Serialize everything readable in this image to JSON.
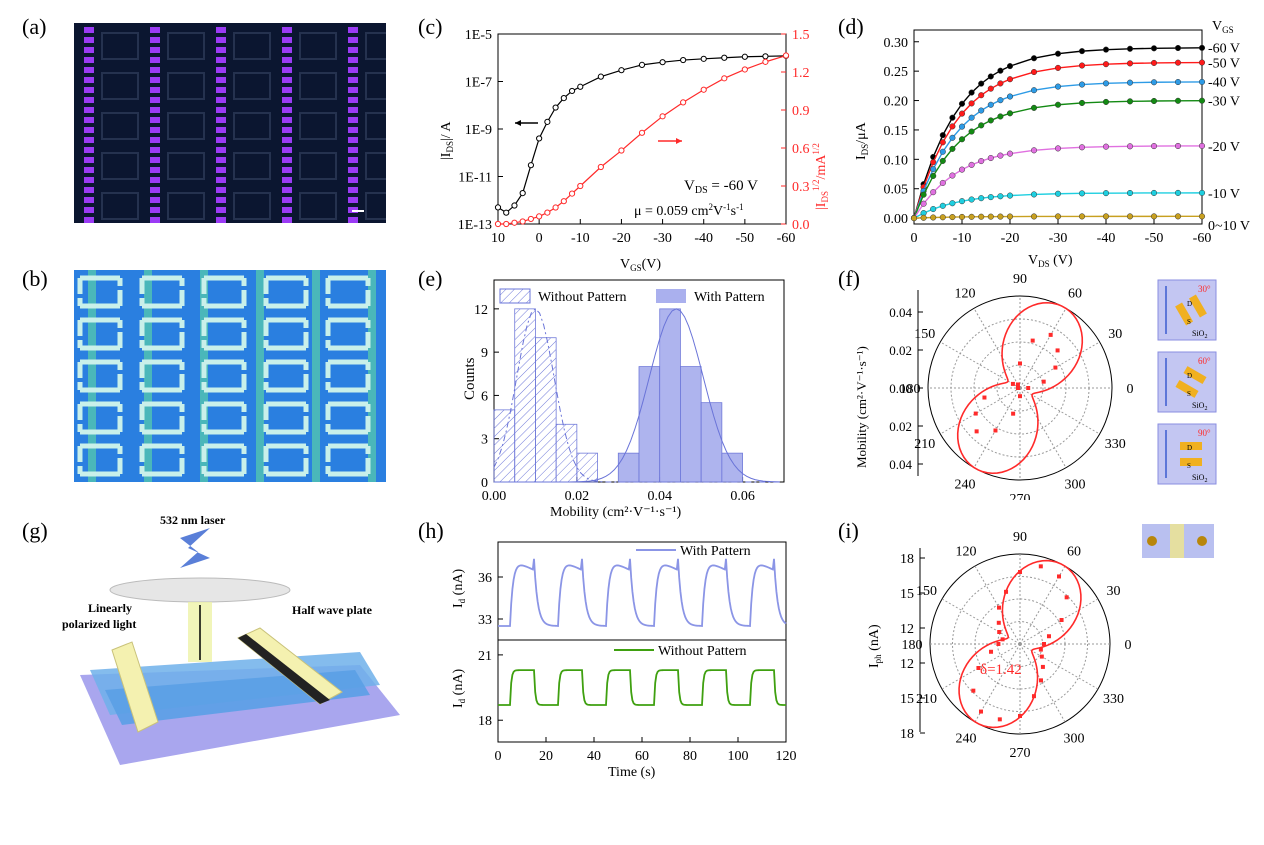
{
  "labels": {
    "a": "(a)",
    "b": "(b)",
    "c": "(c)",
    "d": "(d)",
    "e": "(e)",
    "f": "(f)",
    "g": "(g)",
    "h": "(h)",
    "i": "(i)"
  },
  "colors": {
    "black": "#000000",
    "red": "#ff2a2a",
    "darkblue": "#0b1630",
    "violet": "#9b3bf5",
    "lightblue": "#8b95e6",
    "green": "#3fa010",
    "cyan": "#1ec8e8",
    "gridgray": "#bbbbbb"
  },
  "panel_c": {
    "ylabel_left": "|I",
    "ylabel_left_sub": "DS",
    "ylabel_left_tail": "|/ A",
    "ylabel_right": "|I",
    "ylabel_right_sub": "DS",
    "ylabel_right_sup": "1/2",
    "ylabel_right_tail": "/mA",
    "ylabel_right_sup2": "1/2",
    "xlabel": "V",
    "xlabel_sub": "GS",
    "xlabel_tail": "(V)",
    "left_ticks": [
      "1E-5",
      "1E-7",
      "1E-9",
      "1E-11",
      "1E-13"
    ],
    "right_ticks": [
      "1.5",
      "1.2",
      "0.9",
      "0.6",
      "0.3",
      "0.0"
    ],
    "x_ticks": [
      "10",
      "0",
      "-10",
      "-20",
      "-30",
      "-40",
      "-50",
      "-60"
    ],
    "annot_v": "V",
    "annot_v_sub": "DS",
    "annot_v_tail": " = -60 V",
    "annot_mu": "μ = 0.059 cm",
    "annot_mu_sup": "2",
    "annot_mu_mid": "V",
    "annot_mu_sup2": "-1",
    "annot_mu_mid2": "s",
    "annot_mu_sup3": "-1"
  },
  "panel_d": {
    "ylabel": "I",
    "ylabel_sub": "DS",
    "ylabel_tail": "/μA",
    "xlabel": "V",
    "xlabel_sub": "DS",
    "xlabel_tail": " (V)",
    "y_ticks": [
      "0.30",
      "0.25",
      "0.20",
      "0.15",
      "0.10",
      "0.05",
      "0.00"
    ],
    "x_ticks": [
      "0",
      "-10",
      "-20",
      "-30",
      "-40",
      "-50",
      "-60"
    ],
    "vgs_title": "V",
    "vgs_title_sub": "GS",
    "series_labels": [
      "-60 V",
      "-50 V",
      "-40 V",
      "-30 V",
      "-20 V",
      "-10 V",
      "0~10 V"
    ]
  },
  "panel_e": {
    "ylabel": "Counts",
    "xlabel": "Mobility (cm²·V⁻¹·s⁻¹)",
    "y_ticks": [
      "12",
      "9",
      "6",
      "3",
      "0"
    ],
    "x_ticks": [
      "0.00",
      "0.02",
      "0.04",
      "0.06"
    ],
    "legend_without": "Without Pattern",
    "legend_with": "With Pattern"
  },
  "panel_f": {
    "ylabel": "Mobility (cm²·V⁻¹·s⁻¹)",
    "r_ticks": [
      "0.04",
      "0.02",
      "0.00",
      "0.02",
      "0.04"
    ],
    "angles": [
      "90",
      "60",
      "30",
      "0",
      "330",
      "300",
      "270",
      "240",
      "210",
      "180",
      "150",
      "120"
    ],
    "inset_angles": [
      "30°",
      "60°",
      "90°"
    ],
    "inset_sio2": "SiO",
    "inset_sio2_sub": "2",
    "inset_d": "D",
    "inset_s": "S"
  },
  "panel_g": {
    "laser": "532 nm laser",
    "hwp": "Half wave plate",
    "lpl1": "Linearly",
    "lpl2": "polarized light"
  },
  "panel_h": {
    "ylabel": "I",
    "ylabel_sub": "d",
    "ylabel_tail": " (nA)",
    "xlabel": "Time (s)",
    "top_ticks": [
      "36",
      "33"
    ],
    "bottom_ticks": [
      "21",
      "18"
    ],
    "x_ticks": [
      "0",
      "20",
      "40",
      "60",
      "80",
      "100",
      "120"
    ],
    "legend_with": "With Pattern",
    "legend_without": "Without Pattern"
  },
  "panel_i": {
    "ylabel": "I",
    "ylabel_sub": "ph",
    "ylabel_tail": " (nA)",
    "r_ticks": [
      "18",
      "15",
      "12",
      "12",
      "15",
      "18"
    ],
    "angles": [
      "90",
      "60",
      "30",
      "0",
      "330",
      "300",
      "270",
      "240",
      "210",
      "180",
      "150",
      "120"
    ],
    "delta": "δ=1.42"
  },
  "chart_data": [
    {
      "type": "line",
      "id": "c",
      "x": [
        10,
        8,
        6,
        4,
        2,
        0,
        -2,
        -4,
        -6,
        -8,
        -10,
        -15,
        -20,
        -25,
        -30,
        -35,
        -40,
        -45,
        -50,
        -55,
        -60
      ],
      "series": [
        {
          "axis": "left",
          "log": true,
          "values": [
            5e-13,
            3e-13,
            6e-13,
            2e-12,
            3e-11,
            4e-10,
            2e-09,
            8e-09,
            2e-08,
            4e-08,
            6e-08,
            1.6e-07,
            3e-07,
            5e-07,
            6.5e-07,
            8e-07,
            9e-07,
            1e-06,
            1.1e-06,
            1.15e-06,
            1.2e-06
          ]
        },
        {
          "axis": "right",
          "values": [
            0.0,
            0.0,
            0.01,
            0.02,
            0.04,
            0.06,
            0.09,
            0.13,
            0.18,
            0.24,
            0.3,
            0.45,
            0.58,
            0.72,
            0.85,
            0.96,
            1.06,
            1.15,
            1.22,
            1.28,
            1.33
          ]
        }
      ],
      "xlim": [
        10,
        -60
      ],
      "ylim_left": [
        1e-13,
        1e-05
      ],
      "ylim_right": [
        0,
        1.5
      ]
    },
    {
      "type": "line",
      "id": "d",
      "x": [
        0,
        -2,
        -4,
        -6,
        -8,
        -10,
        -12,
        -14,
        -16,
        -18,
        -20,
        -25,
        -30,
        -35,
        -40,
        -45,
        -50,
        -55,
        -60
      ],
      "series": [
        {
          "name": "-60 V",
          "sat": 0.29
        },
        {
          "name": "-50 V",
          "sat": 0.265
        },
        {
          "name": "-40 V",
          "sat": 0.232
        },
        {
          "name": "-30 V",
          "sat": 0.2
        },
        {
          "name": "-20 V",
          "sat": 0.123
        },
        {
          "name": "-10 V",
          "sat": 0.043
        },
        {
          "name": "0~10 V",
          "sat": 0.003
        }
      ],
      "xlim": [
        0,
        -60
      ],
      "ylim": [
        -0.01,
        0.32
      ]
    },
    {
      "type": "bar",
      "id": "e",
      "bin_width": 0.005,
      "series": [
        {
          "name": "Without Pattern",
          "bins": [
            0.0025,
            0.0075,
            0.0125,
            0.0175,
            0.0225
          ],
          "values": [
            5,
            12,
            10,
            4,
            2
          ]
        },
        {
          "name": "With Pattern",
          "bins": [
            0.0325,
            0.0375,
            0.0425,
            0.0475,
            0.0525,
            0.0575
          ],
          "values": [
            2,
            8,
            12,
            8,
            5.5,
            2
          ]
        }
      ],
      "xlim": [
        0,
        0.07
      ],
      "ylim": [
        0,
        14
      ]
    },
    {
      "type": "scatter",
      "id": "f",
      "polar": true,
      "angles_deg": [
        0,
        15,
        30,
        45,
        60,
        75,
        90,
        120,
        150,
        180,
        195,
        210,
        225,
        240,
        255,
        270
      ],
      "values": [
        0.004,
        0.012,
        0.02,
        0.026,
        0.03,
        0.024,
        0.012,
        0.002,
        0.004,
        0.001,
        0.018,
        0.025,
        0.03,
        0.024,
        0.013,
        0.004
      ],
      "rlim": [
        0,
        0.045
      ]
    },
    {
      "type": "line",
      "id": "h",
      "series": [
        {
          "name": "With Pattern",
          "low": 32.5,
          "high": 37.3,
          "period": 20
        },
        {
          "name": "Without Pattern",
          "low": 18.7,
          "high": 20.3,
          "period": 20
        }
      ],
      "xlim": [
        0,
        120
      ]
    },
    {
      "type": "scatter",
      "id": "i",
      "polar": true,
      "angles_deg": [
        0,
        15,
        30,
        45,
        60,
        75,
        90,
        105,
        120,
        135,
        150,
        165,
        180,
        195,
        210,
        225,
        240,
        255,
        270,
        285,
        300,
        315,
        330,
        345
      ],
      "values": [
        12.5,
        13,
        14.5,
        16,
        17,
        17.2,
        16.5,
        15,
        14,
        13,
        12.5,
        12,
        12.3,
        13,
        14.5,
        16,
        17,
        17,
        16.5,
        15,
        14,
        13.2,
        12.6,
        12.3
      ],
      "rlim": [
        10.5,
        18
      ]
    }
  ]
}
